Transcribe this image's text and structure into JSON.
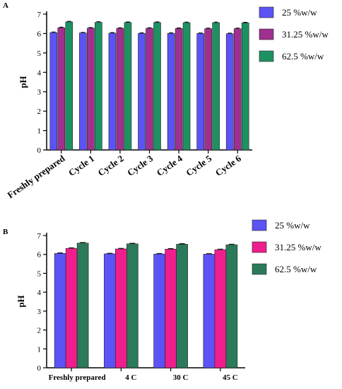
{
  "chart_data": [
    {
      "panel": "A",
      "type": "bar",
      "ylabel": "pH",
      "ylim": [
        0,
        7
      ],
      "yticks": [
        "0",
        "1",
        "2",
        "3",
        "4",
        "5",
        "6",
        "7"
      ],
      "categories": [
        "Freshly prepared",
        "Cycle 1",
        "Cycle 2",
        "Cycle 3",
        "Cycle 4",
        "Cycle 5",
        "Cycle 6"
      ],
      "series": [
        {
          "name": "25 %w/w",
          "color": "#5b53f5",
          "values": [
            6.05,
            6.03,
            6.02,
            6.01,
            6.01,
            6.0,
            5.99
          ]
        },
        {
          "name": "31.25 %w/w",
          "color": "#a0308f",
          "values": [
            6.3,
            6.28,
            6.27,
            6.27,
            6.26,
            6.25,
            6.25
          ]
        },
        {
          "name": "62.5 %w/w",
          "color": "#1e9162",
          "values": [
            6.6,
            6.58,
            6.57,
            6.57,
            6.56,
            6.56,
            6.55
          ]
        }
      ],
      "legend_position": "top-right"
    },
    {
      "panel": "B",
      "type": "bar",
      "ylabel": "pH",
      "ylim": [
        0,
        7
      ],
      "yticks": [
        "0",
        "1",
        "2",
        "3",
        "4",
        "5",
        "6",
        "7"
      ],
      "categories": [
        "Freshly prepared",
        "4 C",
        "30 C",
        "45 C"
      ],
      "series": [
        {
          "name": "25 %w/w",
          "color": "#5b53f5",
          "values": [
            6.05,
            6.03,
            6.02,
            6.01
          ]
        },
        {
          "name": "31.25 %w/w",
          "color": "#ee1e8c",
          "values": [
            6.32,
            6.29,
            6.28,
            6.25
          ]
        },
        {
          "name": "62.5 %w/w",
          "color": "#2b7a5a",
          "values": [
            6.6,
            6.56,
            6.54,
            6.51
          ]
        }
      ],
      "legend_position": "top-right"
    }
  ]
}
